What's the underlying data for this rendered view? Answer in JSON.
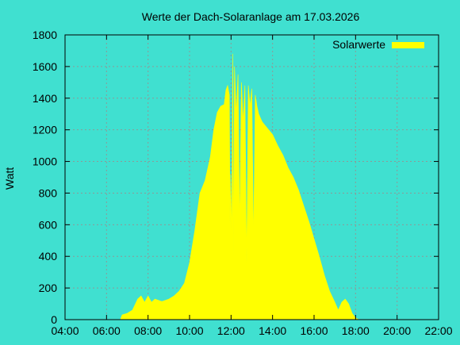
{
  "chart_data": {
    "type": "area",
    "title": "Werte der Dach-Solaranlage am 17.03.2026",
    "xlabel": "",
    "ylabel": "Watt",
    "x_ticks": [
      "04:00",
      "06:00",
      "08:00",
      "10:00",
      "12:00",
      "14:00",
      "16:00",
      "18:00",
      "20:00",
      "22:00"
    ],
    "x_range_hours": [
      4,
      22
    ],
    "y_ticks": [
      0,
      200,
      400,
      600,
      800,
      1000,
      1200,
      1400,
      1600,
      1800
    ],
    "ylim": [
      0,
      1800
    ],
    "grid": true,
    "legend_position": "top-right",
    "series": [
      {
        "name": "Solarwerte",
        "color": "#FFFF00",
        "points": [
          [
            "06:40",
            0
          ],
          [
            "06:45",
            30
          ],
          [
            "07:00",
            40
          ],
          [
            "07:15",
            60
          ],
          [
            "07:30",
            130
          ],
          [
            "07:40",
            150
          ],
          [
            "07:50",
            110
          ],
          [
            "08:00",
            150
          ],
          [
            "08:10",
            110
          ],
          [
            "08:20",
            130
          ],
          [
            "08:40",
            115
          ],
          [
            "09:00",
            130
          ],
          [
            "09:15",
            150
          ],
          [
            "09:30",
            180
          ],
          [
            "09:45",
            230
          ],
          [
            "10:00",
            360
          ],
          [
            "10:15",
            560
          ],
          [
            "10:30",
            800
          ],
          [
            "10:45",
            880
          ],
          [
            "11:00",
            1030
          ],
          [
            "11:10",
            1200
          ],
          [
            "11:20",
            1310
          ],
          [
            "11:30",
            1350
          ],
          [
            "11:40",
            1360
          ],
          [
            "11:45",
            1450
          ],
          [
            "11:50",
            1480
          ],
          [
            "11:55",
            1420
          ],
          [
            "11:57",
            600
          ],
          [
            "11:59",
            920
          ],
          [
            "12:02",
            500
          ],
          [
            "12:05",
            1680
          ],
          [
            "12:07",
            400
          ],
          [
            "12:10",
            1600
          ],
          [
            "12:15",
            1300
          ],
          [
            "12:20",
            1550
          ],
          [
            "12:25",
            600
          ],
          [
            "12:30",
            1500
          ],
          [
            "12:35",
            1250
          ],
          [
            "12:40",
            1480
          ],
          [
            "12:45",
            360
          ],
          [
            "12:50",
            1480
          ],
          [
            "12:55",
            1350
          ],
          [
            "13:00",
            1460
          ],
          [
            "13:05",
            500
          ],
          [
            "13:10",
            1420
          ],
          [
            "13:15",
            1350
          ],
          [
            "13:20",
            1300
          ],
          [
            "13:30",
            1250
          ],
          [
            "13:45",
            1210
          ],
          [
            "14:00",
            1170
          ],
          [
            "14:15",
            1100
          ],
          [
            "14:30",
            1040
          ],
          [
            "14:45",
            960
          ],
          [
            "15:00",
            900
          ],
          [
            "15:15",
            820
          ],
          [
            "15:30",
            720
          ],
          [
            "15:45",
            620
          ],
          [
            "16:00",
            510
          ],
          [
            "16:15",
            400
          ],
          [
            "16:30",
            280
          ],
          [
            "16:45",
            180
          ],
          [
            "17:00",
            110
          ],
          [
            "17:10",
            60
          ],
          [
            "17:20",
            110
          ],
          [
            "17:30",
            130
          ],
          [
            "17:40",
            100
          ],
          [
            "17:50",
            40
          ],
          [
            "18:00",
            10
          ],
          [
            "18:10",
            0
          ]
        ]
      }
    ]
  }
}
